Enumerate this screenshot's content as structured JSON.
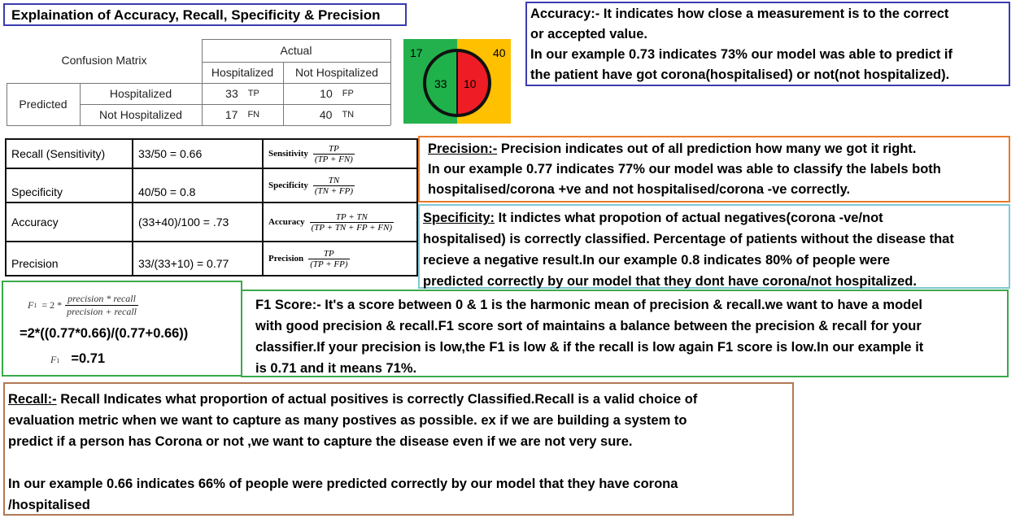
{
  "title": "Explaination of Accuracy, Recall, Specificity & Precision",
  "confusion_matrix": {
    "label": "Confusion Matrix",
    "actual_label": "Actual",
    "predicted_label": "Predicted",
    "col_hospitalized": "Hospitalized",
    "col_not_hospitalized": "Not Hospitalized",
    "row_hospitalized": "Hospitalized",
    "row_not_hospitalized": "Not Hospitalized",
    "tp_value": "33",
    "tp_label": "TP",
    "fp_value": "10",
    "fp_label": "FP",
    "fn_value": "17",
    "fn_label": "FN",
    "tn_value": "40",
    "tn_label": "TN"
  },
  "pie": {
    "fn_label": "17",
    "tn_label": "40",
    "tp_label": "33",
    "fp_label": "10",
    "colors": {
      "green": "#1fb14a",
      "red": "#ee1c24",
      "bg_green": "#22b14c",
      "bg_orange": "#ffc000"
    }
  },
  "accuracy_box": {
    "line1": "Accuracy:- It indicates how close a measurement is to the correct",
    "line2": "or accepted value.",
    "line3": "In our example 0.73 indicates 73% our model was able to predict if",
    "line4": "the patient have got corona(hospitalised) or not(not hospitalized)."
  },
  "metrics": {
    "recall_name": "Recall (Sensitivity)",
    "recall_calc": "33/50 = 0.66",
    "recall_formula_name": "Sensitivity",
    "recall_num": "TP",
    "recall_den": "(TP + FN)",
    "specificity_name": "Specificity",
    "specificity_calc": "40/50 = 0.8",
    "specificity_formula_name": "Specificity",
    "specificity_num": "TN",
    "specificity_den": "(TN + FP)",
    "accuracy_name": "Accuracy",
    "accuracy_calc": "(33+40)/100 = .73",
    "accuracy_formula_name": "Accuracy",
    "accuracy_num": "TP + TN",
    "accuracy_den": "(TP + TN + FP + FN)",
    "precision_name": "Precision",
    "precision_calc": "33/(33+10) = 0.77",
    "precision_formula_name": "Precision",
    "precision_num": "TP",
    "precision_den": "(TP + FP)"
  },
  "precision_box": {
    "heading": "Precision:-",
    "line1_rest": " Precision indicates out of all prediction how many we got it right.",
    "line2": "In our example 0.77 indicates 77% our model was able to classify the labels both",
    "line3": "hospitalised/corona +ve and not hospitalised/corona -ve correctly."
  },
  "specificity_box": {
    "heading": "Specificity:",
    "line1_rest": " It indictes what propotion of actual negatives(corona -ve/not",
    "line2": "hospitalised) is correctly classified. Percentage of patients without the disease that",
    "line3": "recieve a negative result.In our example 0.8 indicates 80% of people were",
    "line4": "predicted correctly by our model that they dont have corona/not hospitalized."
  },
  "f1_formula": {
    "lhs": "F",
    "lhs_sub": "1",
    "eq": "= 2 *",
    "num": "precision * recall",
    "den": "precision + recall",
    "calc": "=2*((0.77*0.66)/(0.77+0.66))",
    "result_lhs": "F",
    "result_sub": "1",
    "result": "=0.71"
  },
  "f1_box": {
    "line1": "F1 Score:- It's a score between 0 & 1 is the harmonic mean of precision & recall.we want to have a model",
    "line2": "with good precision & recall.F1 score sort of maintains a balance between the precision & recall for your",
    "line3": "classifier.If your precision is low,the F1 is low & if the recall is low again F1 score is low.In our example it",
    "line4": "is 0.71 and it means 71%."
  },
  "recall_box": {
    "heading": "Recall:-",
    "line1_rest": " Recall Indicates what proportion of actual positives is correctly Classified.Recall is a valid choice of",
    "line2": "evaluation metric when we want to capture as many postives as possible. ex if we are building a system to",
    "line3": "predict if a person has Corona or not ,we want to capture the disease even if we are not very sure.",
    "line4": "In our example 0.66 indicates 66% of people were predicted correctly by our model that they have corona",
    "line5": "/hospitalised"
  }
}
